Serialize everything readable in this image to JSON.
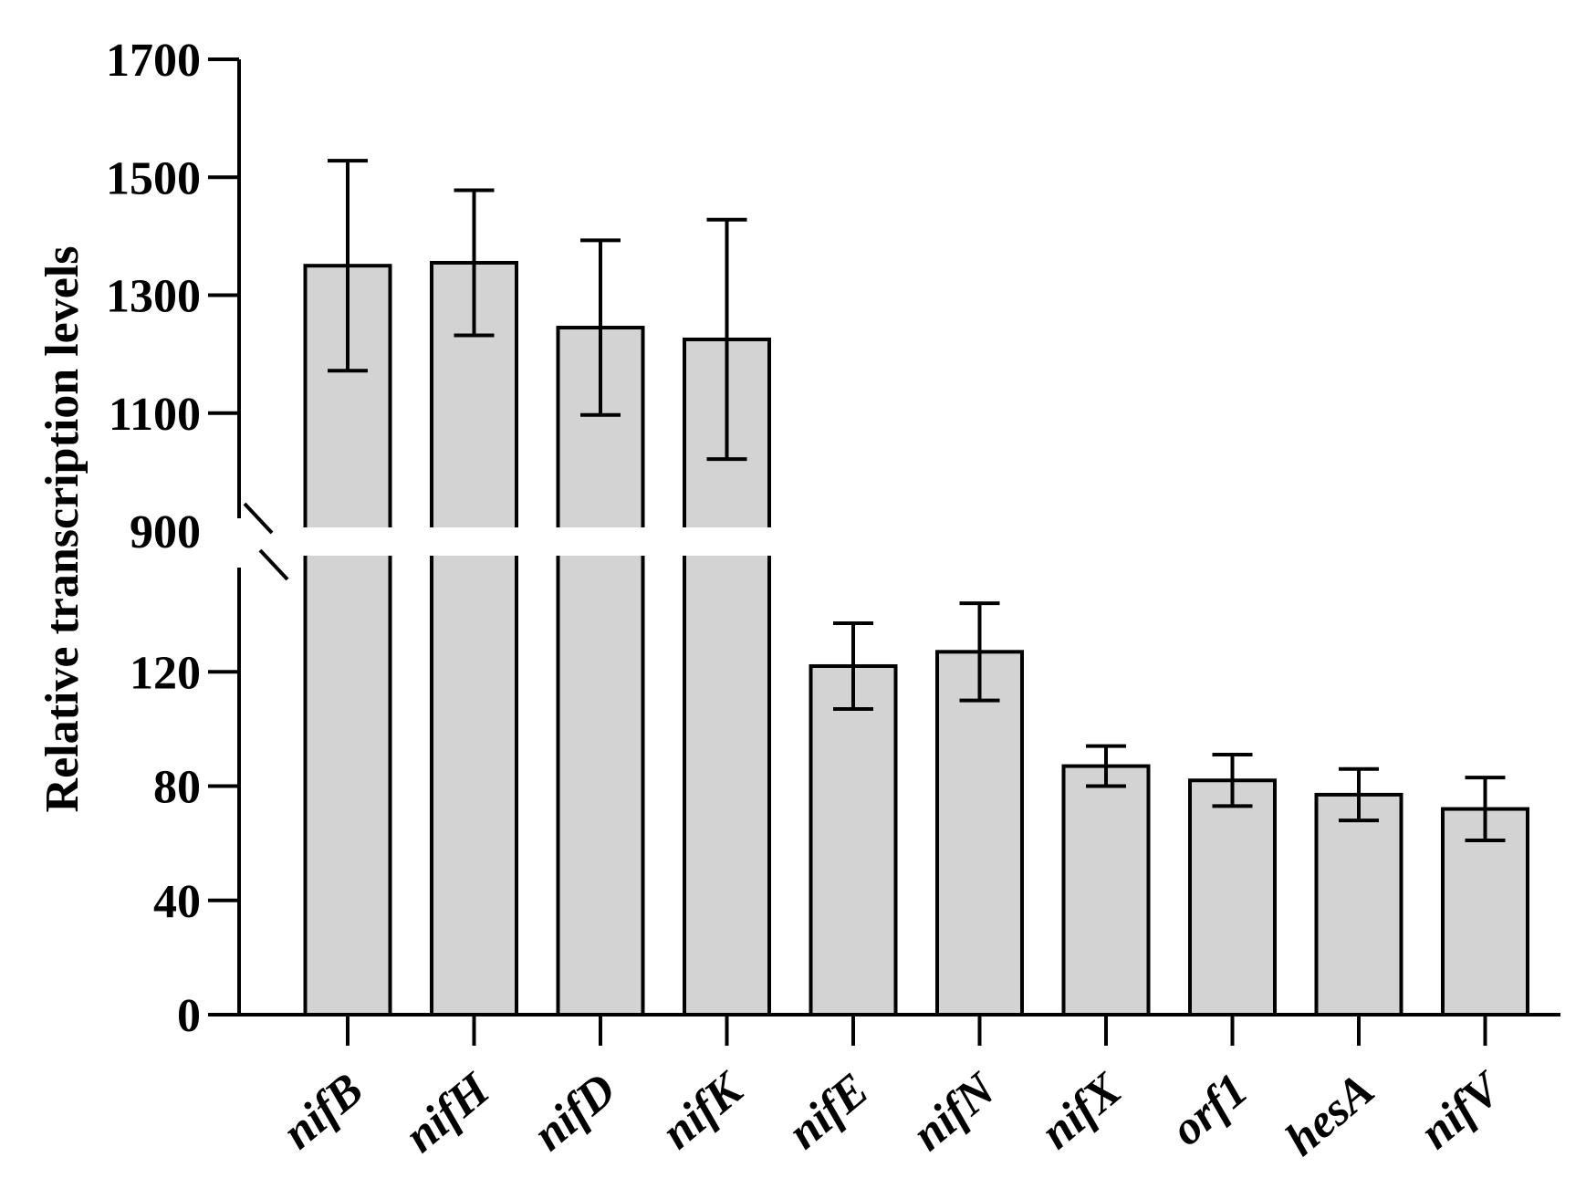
{
  "chart_data": {
    "type": "bar",
    "title": "",
    "xlabel": "",
    "ylabel": "Relative transcription levels",
    "categories": [
      "nifB",
      "nifH",
      "nifD",
      "nifK",
      "nifE",
      "nifN",
      "nifX",
      "orf1",
      "hesA",
      "nifV"
    ],
    "series": [
      {
        "values": [
          1350,
          1355,
          1245,
          1225,
          122,
          127,
          87,
          82,
          77,
          72
        ],
        "error": [
          178,
          123,
          148,
          203,
          15,
          17,
          7,
          9,
          9,
          11
        ]
      }
    ],
    "axis_break": {
      "lower_range": [
        0,
        160
      ],
      "upper_range": [
        900,
        1700
      ]
    },
    "y_ticks_lower": [
      0,
      40,
      80,
      120
    ],
    "y_ticks_upper": [
      900,
      1100,
      1300,
      1500,
      1700
    ],
    "y_tick_labels_lower": [
      "0",
      "40",
      "80",
      "120"
    ],
    "y_tick_labels_upper": [
      "900",
      "1100",
      "1300",
      "1500",
      "1700"
    ],
    "bar_color": "#d3d3d3",
    "edge_color": "#000000",
    "grid": false,
    "legend": "none"
  }
}
